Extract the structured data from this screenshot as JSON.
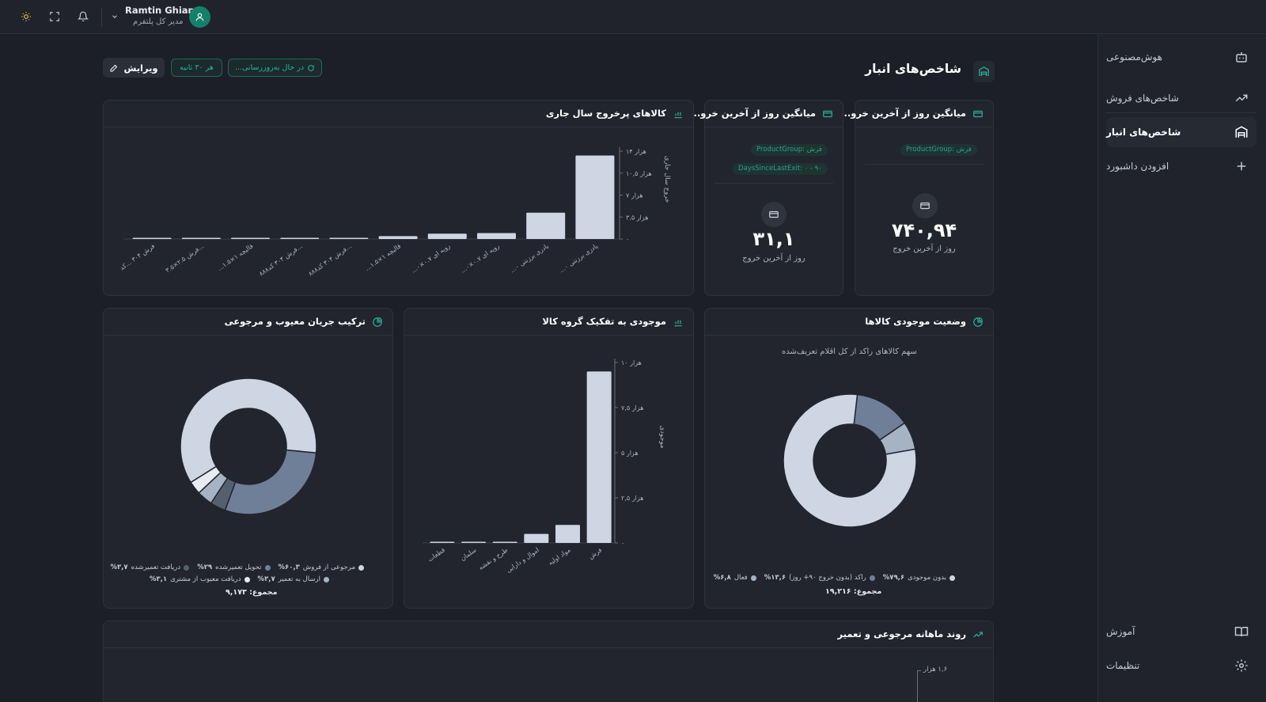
{
  "topbar": {
    "user_name": "Ramtin Ghiami",
    "user_role": "مدیر کل پلتفرم"
  },
  "sidebar": {
    "items": [
      {
        "label": "هوش‌مصنوعی",
        "icon": "robot-icon"
      },
      {
        "label": "شاخص‌های فروش",
        "icon": "trend-up-icon"
      },
      {
        "label": "شاخص‌های انبار",
        "icon": "warehouse-icon",
        "active": true
      },
      {
        "label": "افزودن داشبورد",
        "icon": "plus-icon"
      }
    ],
    "bottom": [
      {
        "label": "آموزش",
        "icon": "book-icon"
      },
      {
        "label": "تنظیمات",
        "icon": "gear-icon"
      }
    ]
  },
  "header": {
    "title": "شاخص‌های انبار",
    "edit_label": "ویرایش",
    "refresh_interval": "هر ۳۰ ثانیه",
    "updating_status": "در حال به‌روزرسانی..."
  },
  "kpi_cards": [
    {
      "title": "میانگین روز از آخرین خرو...",
      "tags": [
        "ProductGroup: فرش"
      ],
      "value": "۷۴۰,۹۴",
      "label": "روز از آخرین خروج"
    },
    {
      "title": "میانگین روز از آخرین خرو...",
      "tags": [
        "ProductGroup: فرش",
        "DaysSinceLastExit: ۰ - ۹۰"
      ],
      "value": "۳۱,۱",
      "label": "روز از آخرین خروج"
    }
  ],
  "top_exit_chart": {
    "title": "کالاهای پرخروج سال جاری",
    "ylabel": "خروج سال جاری",
    "yticks": [
      "۰",
      "۳,۵ هزار",
      "۷ هزار",
      "۱۰,۵ هزار",
      "۱۴ هزار"
    ],
    "chart_data": {
      "type": "bar",
      "categories": [
        "فرش ۳۰۴ ...کد",
        "فرش ۲.۵×۳.۵...",
        "...قالیچه ۱×۱.۵",
        "فرش ۳۰۴ کد۸۸۸...",
        "فرش ۳۰۴ کد۸۸۸...",
        "...قالیچه ۱×۱.۵",
        "...رویه ای ۰.۷×۰",
        "...رویه ای ۰.۷×۰",
        "...پادری برزنتی ۰",
        "...پادری برزنتی ۰"
      ],
      "values": [
        80,
        90,
        100,
        110,
        140,
        450,
        850,
        950,
        4200,
        13300
      ],
      "ylim": [
        0,
        14000
      ]
    }
  },
  "inventory_status": {
    "title": "وضعیت موجودی کالاها",
    "subtitle": "سهم کالاهای راکد از کل اقلام تعریف‌شده",
    "total": "مجموع: ۱۹,۲۱۶",
    "chart_data": {
      "type": "pie",
      "labels": [
        "بدون موجودی",
        "راکد (بدون خروج ۹۰+ روز)",
        "فعال"
      ],
      "values": [
        79.6,
        13.6,
        6.8
      ],
      "value_labels": [
        "%۷۹,۶",
        "%۱۳,۶",
        "%۶,۸"
      ],
      "colors": [
        "#cdd6e2",
        "#6f7f98",
        "#a6b3c4"
      ]
    }
  },
  "by_group_chart": {
    "title": "موجودی به تفکیک گروه کالا",
    "ylabel": "موجودی",
    "yticks": [
      "۰",
      "۲,۵ هزار",
      "۵ هزار",
      "۷,۵ هزار",
      "۱۰ هزار"
    ],
    "chart_data": {
      "type": "bar",
      "categories": [
        "قطعات",
        "سلمان",
        "طرح و نقشه",
        "اموال و دارایی",
        "مواد اولیه",
        "فرش"
      ],
      "values": [
        20,
        30,
        60,
        500,
        1000,
        9500
      ],
      "ylim": [
        0,
        10000
      ]
    }
  },
  "defect_flow": {
    "title": "ترکیب جریان معیوب و مرجوعی",
    "total": "مجموع: ۹,۱۷۳",
    "chart_data": {
      "type": "pie",
      "labels": [
        "مرجوعی از فروش",
        "تحویل تعمیرشده",
        "دریافت تعمیرشده",
        "ارسال به تعمیر",
        "دریافت معیوب از مشتری"
      ],
      "values": [
        60.3,
        29,
        3.7,
        3.7,
        3.1
      ],
      "value_labels": [
        "%۶۰,۳",
        "%۲۹",
        "%۳,۷",
        "%۳,۷",
        "%۳,۱"
      ],
      "colors": [
        "#cdd6e2",
        "#6f7f98",
        "#55606f",
        "#a6b3c4",
        "#e7ecf2"
      ]
    }
  },
  "monthly_trend": {
    "title": "روند ماهانه مرجوعی و تعمیر",
    "ytick_top": "۱,۶ هزار"
  }
}
